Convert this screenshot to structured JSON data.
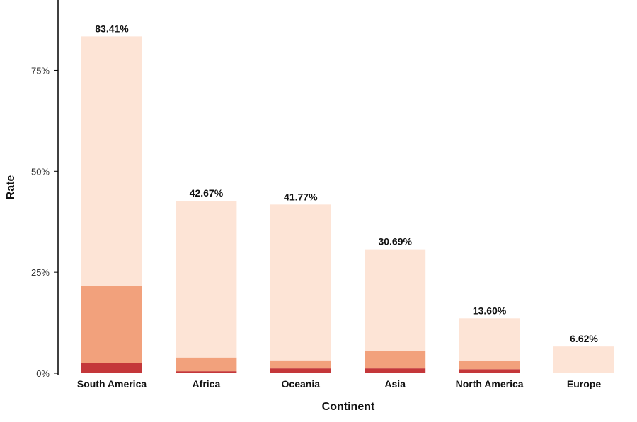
{
  "chart_data": {
    "type": "bar",
    "stacked": true,
    "xlabel": "Continent",
    "ylabel": "Rate",
    "ylim": [
      0,
      92
    ],
    "yticks": [
      0,
      25,
      50,
      75
    ],
    "ytick_labels": [
      "0%",
      "25%",
      "50%",
      "75%"
    ],
    "categories": [
      "South America",
      "Africa",
      "Oceania",
      "Asia",
      "North America",
      "Europe"
    ],
    "totals": [
      83.41,
      42.67,
      41.77,
      30.69,
      13.6,
      6.62
    ],
    "total_labels": [
      "83.41%",
      "42.67%",
      "41.77%",
      "30.69%",
      "13.60%",
      "6.62%"
    ],
    "series": [
      {
        "values": [
          2.5,
          0.5,
          1.2,
          1.2,
          1.0,
          0.0
        ],
        "color": "#c4373a"
      },
      {
        "values": [
          19.2,
          3.4,
          2.0,
          4.3,
          2.0,
          0.0
        ],
        "color": "#f2a17c"
      },
      {
        "values": [
          61.71,
          38.77,
          38.57,
          25.19,
          10.6,
          6.62
        ],
        "color": "#fde4d6"
      }
    ],
    "grid": false,
    "legend": "none"
  }
}
